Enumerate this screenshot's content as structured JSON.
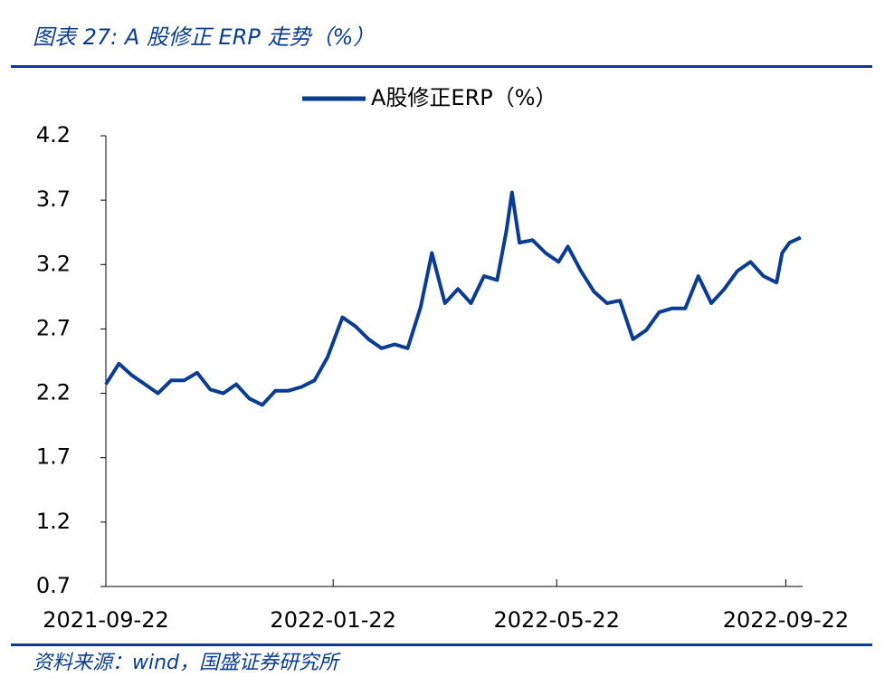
{
  "chart_data": {
    "type": "line",
    "title": "图表 27:  A 股修正 ERP 走势（%）",
    "source": "资料来源：wind，国盛证券研究所",
    "x": [
      "2021-09-22",
      "2021-09-29",
      "2021-10-06",
      "2021-10-13",
      "2021-10-20",
      "2021-10-27",
      "2021-11-03",
      "2021-11-10",
      "2021-11-17",
      "2021-11-24",
      "2021-12-01",
      "2021-12-08",
      "2021-12-15",
      "2021-12-22",
      "2021-12-29",
      "2022-01-05",
      "2022-01-12",
      "2022-01-19",
      "2022-01-27",
      "2022-02-03",
      "2022-02-10",
      "2022-02-17",
      "2022-02-24",
      "2022-03-03",
      "2022-03-10",
      "2022-03-16",
      "2022-03-23",
      "2022-03-30",
      "2022-04-06",
      "2022-04-13",
      "2022-04-20",
      "2022-04-25",
      "2022-04-28",
      "2022-05-02",
      "2022-05-09",
      "2022-05-16",
      "2022-05-23",
      "2022-05-28",
      "2022-06-04",
      "2022-06-11",
      "2022-06-18",
      "2022-06-25",
      "2022-07-02",
      "2022-07-09",
      "2022-07-16",
      "2022-07-23",
      "2022-07-30",
      "2022-08-06",
      "2022-08-13",
      "2022-08-20",
      "2022-08-27",
      "2022-09-03",
      "2022-09-10",
      "2022-09-17",
      "2022-09-20",
      "2022-09-24",
      "2022-09-30"
    ],
    "series": [
      {
        "name": "A股修正ERP（%）",
        "color": "#0a3d91",
        "values": [
          2.27,
          2.43,
          2.34,
          2.27,
          2.2,
          2.3,
          2.3,
          2.36,
          2.23,
          2.2,
          2.27,
          2.16,
          2.11,
          2.22,
          2.22,
          2.25,
          2.3,
          2.48,
          2.79,
          2.72,
          2.62,
          2.55,
          2.58,
          2.55,
          2.87,
          3.29,
          2.9,
          3.01,
          2.9,
          3.11,
          3.08,
          3.46,
          3.76,
          3.37,
          3.39,
          3.29,
          3.22,
          3.34,
          3.15,
          2.99,
          2.9,
          2.92,
          2.62,
          2.69,
          2.83,
          2.86,
          2.86,
          3.11,
          2.9,
          3.01,
          3.15,
          3.22,
          3.11,
          3.06,
          3.29,
          3.37,
          3.41
        ]
      }
    ],
    "xlim": [
      "2021-09-22",
      "2022-10-01"
    ],
    "xticks": [
      "2021-09-22",
      "2022-01-22",
      "2022-05-22",
      "2022-09-22"
    ],
    "ylim": [
      0.7,
      4.2
    ],
    "yticks": [
      0.7,
      1.2,
      1.7,
      2.2,
      2.7,
      3.2,
      3.7,
      4.2
    ],
    "legend": "top"
  }
}
